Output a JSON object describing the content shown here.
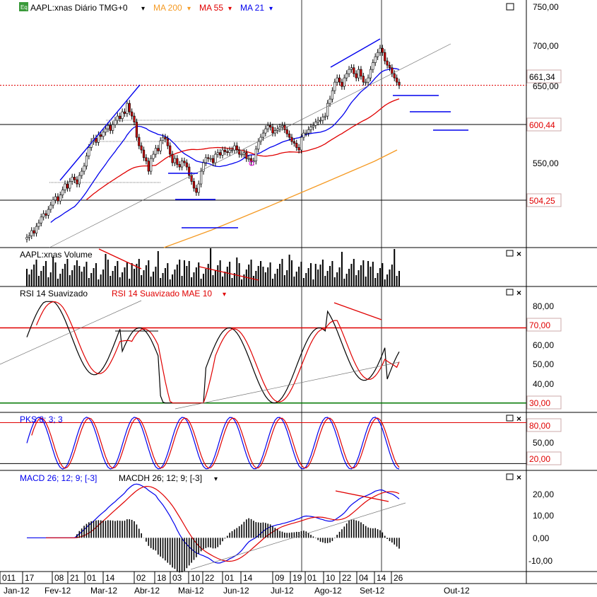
{
  "colors": {
    "black": "#000000",
    "red": "#e00000",
    "blue": "#0000ee",
    "orange": "#f59a23",
    "green": "#007700",
    "grey": "#777777",
    "candle_up": "#000000",
    "candle_down": "#cc0000"
  },
  "header": {
    "badge": "Eq",
    "symbol": "AAPL:xnas Diário TMG+0",
    "ma200": "MA 200",
    "ma55": "MA 55",
    "ma21": "MA 21"
  },
  "price_axis": {
    "ticks": [
      "750,00",
      "700,00",
      "650,00",
      "550,00"
    ],
    "boxes": [
      "661,34",
      "600,44",
      "504,25"
    ]
  },
  "volume_panel": {
    "title": "AAPL:xnas Volume"
  },
  "rsi_panel": {
    "title1": "RSI 14 Suavizado",
    "title2": "RSI 14 Suavizado MAE 10",
    "ticks": [
      "80,00",
      "60,00",
      "50,00",
      "40,00"
    ],
    "boxes": [
      "70,00",
      "30,00"
    ]
  },
  "pks_panel": {
    "title": "PKS 8; 3; 3",
    "ticks": [
      "50,00"
    ],
    "boxes": [
      "80,00",
      "20,00"
    ]
  },
  "macd_panel": {
    "title1": "MACD 26; 12; 9; [-3]",
    "title2": "MACDH 26; 12; 9; [-3]",
    "ticks": [
      "20,00",
      "10,00",
      "0,00",
      "-10,00"
    ]
  },
  "date_axis": {
    "days": [
      "011",
      "17",
      "08",
      "21",
      "01",
      "14",
      "02",
      "18",
      "03",
      "10",
      "22",
      "01",
      "14",
      "09",
      "19",
      "01",
      "10",
      "22",
      "04",
      "14",
      "26"
    ],
    "months": [
      "Jan-12",
      "Fev-12",
      "Mar-12",
      "Abr-12",
      "Mai-12",
      "Jun-12",
      "Jul-12",
      "Ago-12",
      "Set-12",
      "Out-12"
    ]
  },
  "chart_data": [
    {
      "type": "candlestick",
      "name": "AAPL:xnas Diário",
      "ylim": [
        470,
        760
      ],
      "current": 661.34,
      "markers": [
        600.44,
        504.25
      ],
      "closes": [
        482,
        484,
        490,
        487,
        495,
        499,
        506,
        510,
        508,
        515,
        520,
        526,
        530,
        525,
        532,
        538,
        545,
        540,
        548,
        553,
        550,
        545,
        555,
        560,
        566,
        578,
        588,
        595,
        599,
        594,
        603,
        601,
        606,
        610,
        614,
        608,
        615,
        620,
        625,
        622,
        630,
        628,
        640,
        630,
        625,
        618,
        600,
        590,
        585,
        576,
        572,
        560,
        575,
        580,
        587,
        584,
        596,
        600,
        598,
        590,
        580,
        570,
        575,
        568,
        565,
        572,
        570,
        565,
        555,
        548,
        540,
        535,
        545,
        560,
        570,
        576,
        575,
        575,
        570,
        580,
        582,
        579,
        585,
        583,
        582,
        585,
        585,
        590,
        585,
        580,
        580,
        582,
        575,
        575,
        571,
        572,
        586,
        595,
        600,
        605,
        610,
        614,
        612,
        605,
        608,
        610,
        612,
        614,
        609,
        604,
        600,
        595,
        593,
        588,
        585,
        600,
        605,
        605,
        609,
        612,
        614,
        618,
        620,
        620,
        624,
        625,
        640,
        645,
        655,
        665,
        670,
        665,
        660,
        670,
        675,
        680,
        682,
        675,
        670,
        680,
        672,
        665,
        665,
        670,
        680,
        688,
        695,
        700,
        705,
        700,
        690,
        685,
        682,
        675,
        670,
        665,
        661
      ]
    },
    {
      "type": "bar",
      "name": "AAPL:xnas Volume"
    },
    {
      "type": "line",
      "name": "RSI 14 Suavizado",
      "ylim": [
        25,
        92
      ],
      "levels": [
        70,
        30
      ]
    },
    {
      "type": "line",
      "name": "PKS 8; 3; 3",
      "ylim": [
        10,
        95
      ],
      "levels": [
        80,
        20
      ]
    },
    {
      "type": "line",
      "name": "MACD 26; 12; 9; [-3]",
      "ylim": [
        -15,
        30
      ]
    }
  ]
}
